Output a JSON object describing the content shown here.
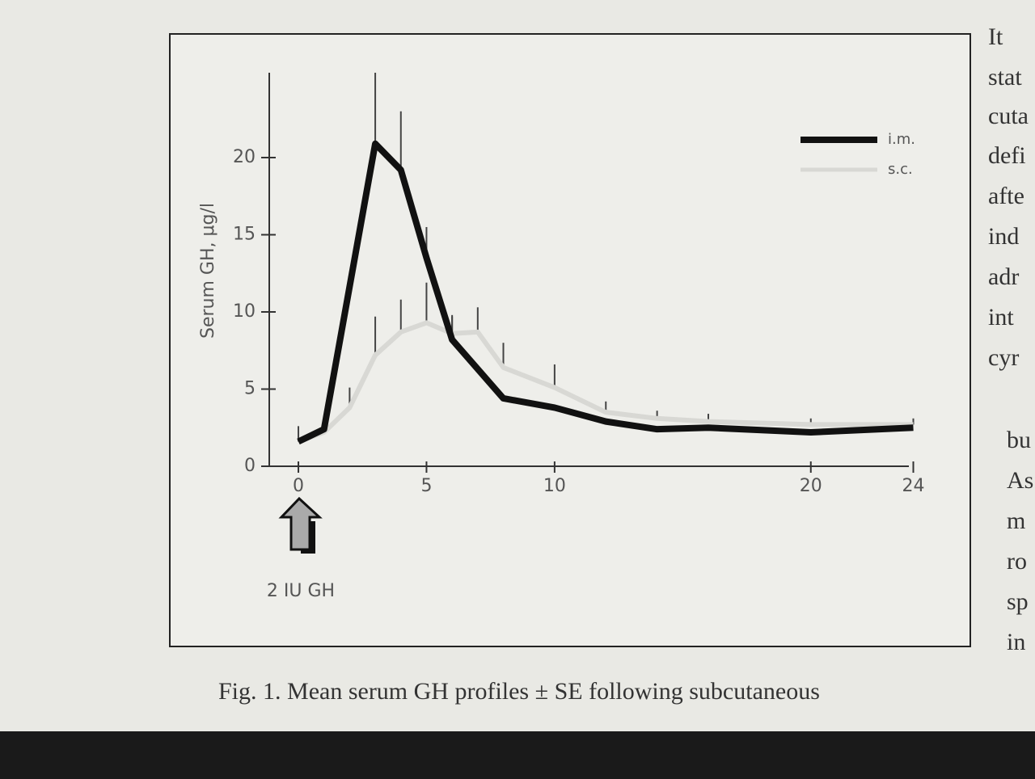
{
  "chart_data": {
    "type": "line",
    "ylabel": "Serum GH, μg/l",
    "annotation": "2 IU GH",
    "xlim": [
      -0.9,
      24.3
    ],
    "ylim": [
      0,
      25.5
    ],
    "xticks": [
      0,
      5,
      10,
      20,
      24
    ],
    "yticks": [
      0,
      5,
      10,
      15,
      20
    ],
    "series": [
      {
        "name": "i.m.",
        "color": "#111111",
        "x": [
          0,
          1,
          3,
          4,
          5,
          6,
          8,
          10,
          12,
          14,
          16,
          20,
          24
        ],
        "values": [
          1.6,
          2.4,
          20.9,
          19.2,
          13.5,
          8.2,
          4.4,
          3.8,
          2.9,
          2.4,
          2.5,
          2.2,
          2.5
        ],
        "errors": [
          null,
          null,
          4.6,
          3.8,
          2,
          1.5,
          null,
          null,
          null,
          null,
          null,
          null,
          null
        ]
      },
      {
        "name": "s.c.",
        "color": "#d8d8d4",
        "x": [
          0,
          1,
          2,
          3,
          4,
          5,
          6,
          7,
          8,
          10,
          12,
          14,
          16,
          20,
          24
        ],
        "values": [
          1.6,
          2.2,
          3.8,
          7.2,
          8.7,
          9.3,
          8.6,
          8.7,
          6.4,
          5.1,
          3.5,
          3.1,
          2.9,
          2.7,
          2.7
        ],
        "errors": [
          1,
          null,
          1.3,
          2.5,
          2.1,
          2.6,
          1.2,
          1.6,
          1.6,
          1.5,
          0.7,
          0.5,
          0.5,
          0.4,
          0.4
        ]
      }
    ]
  },
  "caption": "Fig. 1. Mean serum GH profiles ± SE following subcutaneous",
  "side_text": [
    "It",
    "stat",
    "cuta",
    "defi",
    "afte",
    "ind",
    "adr",
    "int",
    "cyr",
    "bu",
    "As",
    "m",
    "ro",
    "sp",
    "in"
  ]
}
